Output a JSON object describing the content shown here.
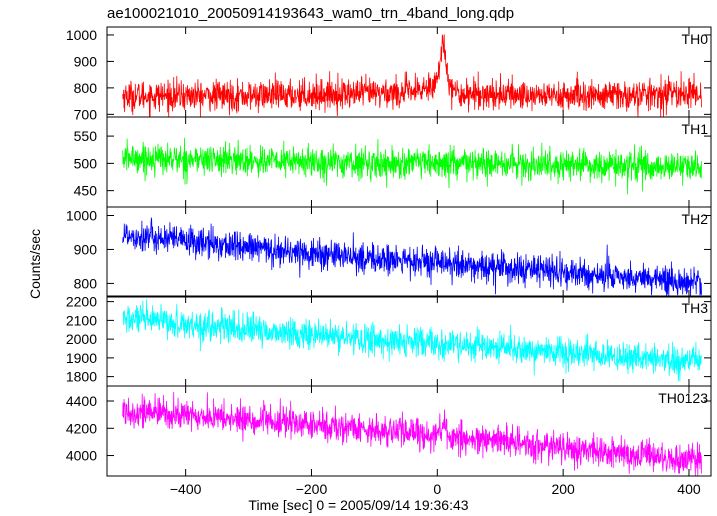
{
  "chart_data": {
    "type": "line",
    "title": "ae100021010_20050914193643_wam0_trn_4band_long.qdp",
    "xlabel": "Time [sec] 0 = 2005/09/14 19:36:43",
    "ylabel": "Counts/sec",
    "xlim": [
      -525,
      435
    ],
    "xticks": [
      -400,
      -200,
      0,
      200,
      400
    ],
    "grid": false,
    "panels": [
      {
        "name": "TH0",
        "color": "#ff0000",
        "ylim": [
          690,
          1030
        ],
        "yticks": [
          700,
          800,
          900,
          1000
        ],
        "x": [
          -500,
          -400,
          -300,
          -200,
          -100,
          -30,
          0,
          10,
          15,
          25,
          100,
          200,
          300,
          400,
          420
        ],
        "y": [
          770,
          770,
          770,
          775,
          780,
          785,
          830,
          980,
          880,
          780,
          775,
          770,
          770,
          780,
          780
        ]
      },
      {
        "name": "TH1",
        "color": "#00ff00",
        "ylim": [
          420,
          585
        ],
        "yticks": [
          450,
          500,
          550
        ],
        "x": [
          -500,
          -300,
          -100,
          100,
          300,
          420
        ],
        "y": [
          510,
          505,
          500,
          498,
          495,
          492
        ]
      },
      {
        "name": "TH2",
        "color": "#0000ff",
        "ylim": [
          760,
          1025
        ],
        "yticks": [
          800,
          900,
          1000
        ],
        "x": [
          -500,
          -300,
          -100,
          100,
          300,
          420
        ],
        "y": [
          945,
          905,
          872,
          845,
          818,
          805
        ]
      },
      {
        "name": "TH3",
        "color": "#00ffff",
        "ylim": [
          1750,
          2230
        ],
        "yticks": [
          1800,
          1900,
          2000,
          2100,
          2200
        ],
        "x": [
          -500,
          -300,
          -100,
          100,
          300,
          420
        ],
        "y": [
          2110,
          2050,
          1995,
          1950,
          1900,
          1880
        ]
      },
      {
        "name": "TH0123",
        "color": "#ff00ff",
        "ylim": [
          3850,
          4510
        ],
        "yticks": [
          4000,
          4200,
          4400
        ],
        "x": [
          -500,
          -300,
          -100,
          0,
          10,
          20,
          100,
          300,
          420
        ],
        "y": [
          4330,
          4260,
          4190,
          4150,
          4220,
          4130,
          4100,
          4010,
          3960
        ]
      }
    ]
  }
}
